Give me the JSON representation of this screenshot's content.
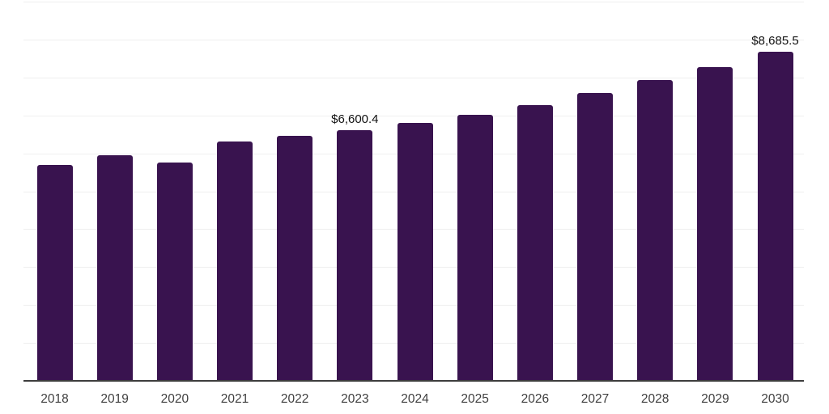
{
  "chart_data": {
    "type": "bar",
    "title": "",
    "categories": [
      "2018",
      "2019",
      "2020",
      "2021",
      "2022",
      "2023",
      "2024",
      "2025",
      "2026",
      "2027",
      "2028",
      "2029",
      "2030"
    ],
    "values": [
      5700,
      5950,
      5750,
      6310,
      6450,
      6600.4,
      6810,
      7010,
      7270,
      7590,
      7940,
      8280,
      8685.5
    ],
    "data_labels": [
      {
        "category": "2023",
        "text": "$6,600.4"
      },
      {
        "category": "2030",
        "text": "$8,685.5"
      }
    ],
    "xlabel": "",
    "ylabel": "",
    "ylim": [
      0,
      10000
    ],
    "gridline_interval": 1000,
    "grid": "horizontal-only",
    "legend": "none",
    "y_tick_labels_visible": false,
    "bar_color": "#39134f",
    "axis_line_color": "#3d3d3d",
    "gridline_color": "#efefef",
    "xtick_color": "#3f3f3f",
    "data_label_color": "#111111"
  }
}
